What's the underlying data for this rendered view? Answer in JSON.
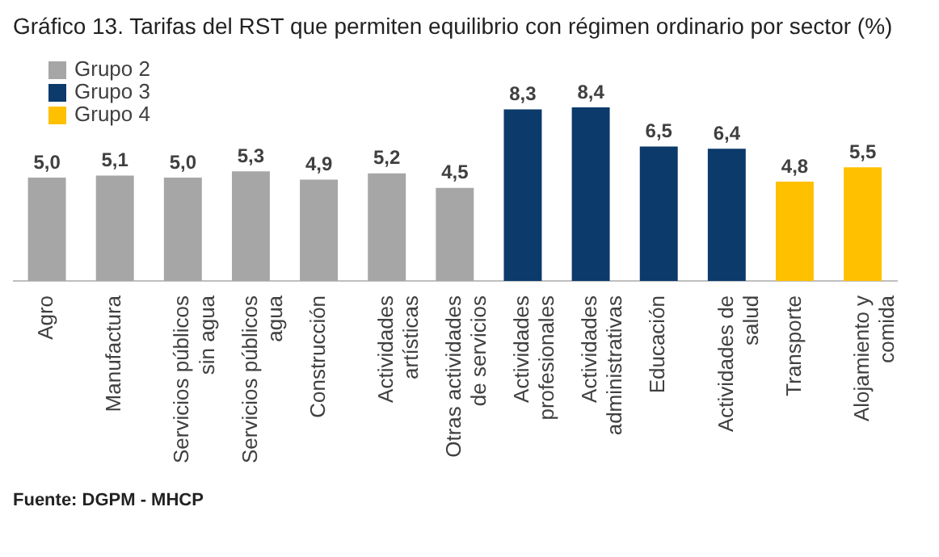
{
  "chart_data": {
    "type": "bar",
    "title": "Gráfico 13. Tarifas del RST que permiten equilibrio con régimen ordinario por sector (%)",
    "categories": [
      "Agro",
      "Manufactura",
      "Servicios públicos sin agua",
      "Servicios públicos agua",
      "Construcción",
      "Actividades artísticas",
      "Otras actividades de servicios",
      "Actividades profesionales",
      "Actividades administrativas",
      "Educación",
      "Actividades de salud",
      "Transporte",
      "Alojamiento y comida"
    ],
    "series": [
      {
        "name": "Grupo 2",
        "color": "#a6a6a6",
        "values": [
          5.0,
          5.1,
          5.0,
          5.3,
          4.9,
          5.2,
          4.5,
          null,
          null,
          null,
          null,
          null,
          null
        ],
        "value_labels": [
          "5,0",
          "5,1",
          "5,0",
          "5,3",
          "4,9",
          "5,2",
          "4,5",
          null,
          null,
          null,
          null,
          null,
          null
        ]
      },
      {
        "name": "Grupo 3",
        "color": "#0b3a6b",
        "values": [
          null,
          null,
          null,
          null,
          null,
          null,
          null,
          8.3,
          8.4,
          6.5,
          6.4,
          null,
          null
        ],
        "value_labels": [
          null,
          null,
          null,
          null,
          null,
          null,
          null,
          "8,3",
          "8,4",
          "6,5",
          "6,4",
          null,
          null
        ]
      },
      {
        "name": "Grupo 4",
        "color": "#ffc000",
        "values": [
          null,
          null,
          null,
          null,
          null,
          null,
          null,
          null,
          null,
          null,
          null,
          4.8,
          5.5
        ],
        "value_labels": [
          null,
          null,
          null,
          null,
          null,
          null,
          null,
          null,
          null,
          null,
          null,
          "4,8",
          "5,5"
        ]
      }
    ],
    "legend": "top left",
    "grid": false,
    "annotations": [
      "Fuente: DGPM - MHCP"
    ]
  }
}
